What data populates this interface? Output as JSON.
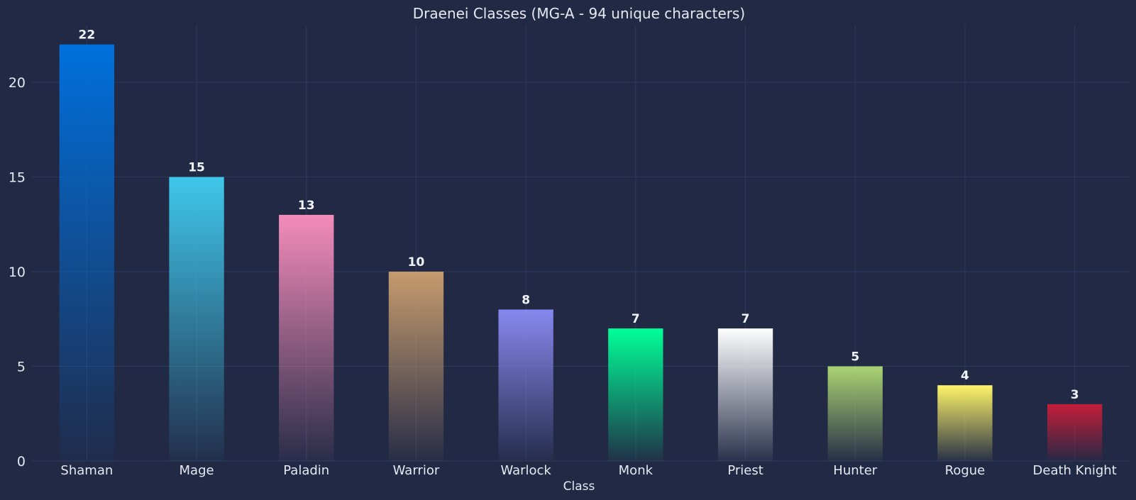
{
  "chart_data": {
    "type": "bar",
    "title": "Draenei Classes (MG-A - 94 unique characters)",
    "xlabel": "Class",
    "ylabel": "",
    "ylim": [
      0,
      23
    ],
    "yticks": [
      0,
      5,
      10,
      15,
      20
    ],
    "grid": true,
    "categories": [
      "Shaman",
      "Mage",
      "Paladin",
      "Warrior",
      "Warlock",
      "Monk",
      "Priest",
      "Hunter",
      "Rogue",
      "Death Knight"
    ],
    "values": [
      22,
      15,
      13,
      10,
      8,
      7,
      7,
      5,
      4,
      3
    ],
    "colors": [
      "#0070DD",
      "#3FC7EB",
      "#F48CBA",
      "#C69B6D",
      "#8788EE",
      "#00FF98",
      "#FFFFFF",
      "#AAD372",
      "#FFF468",
      "#C41E3A"
    ]
  }
}
